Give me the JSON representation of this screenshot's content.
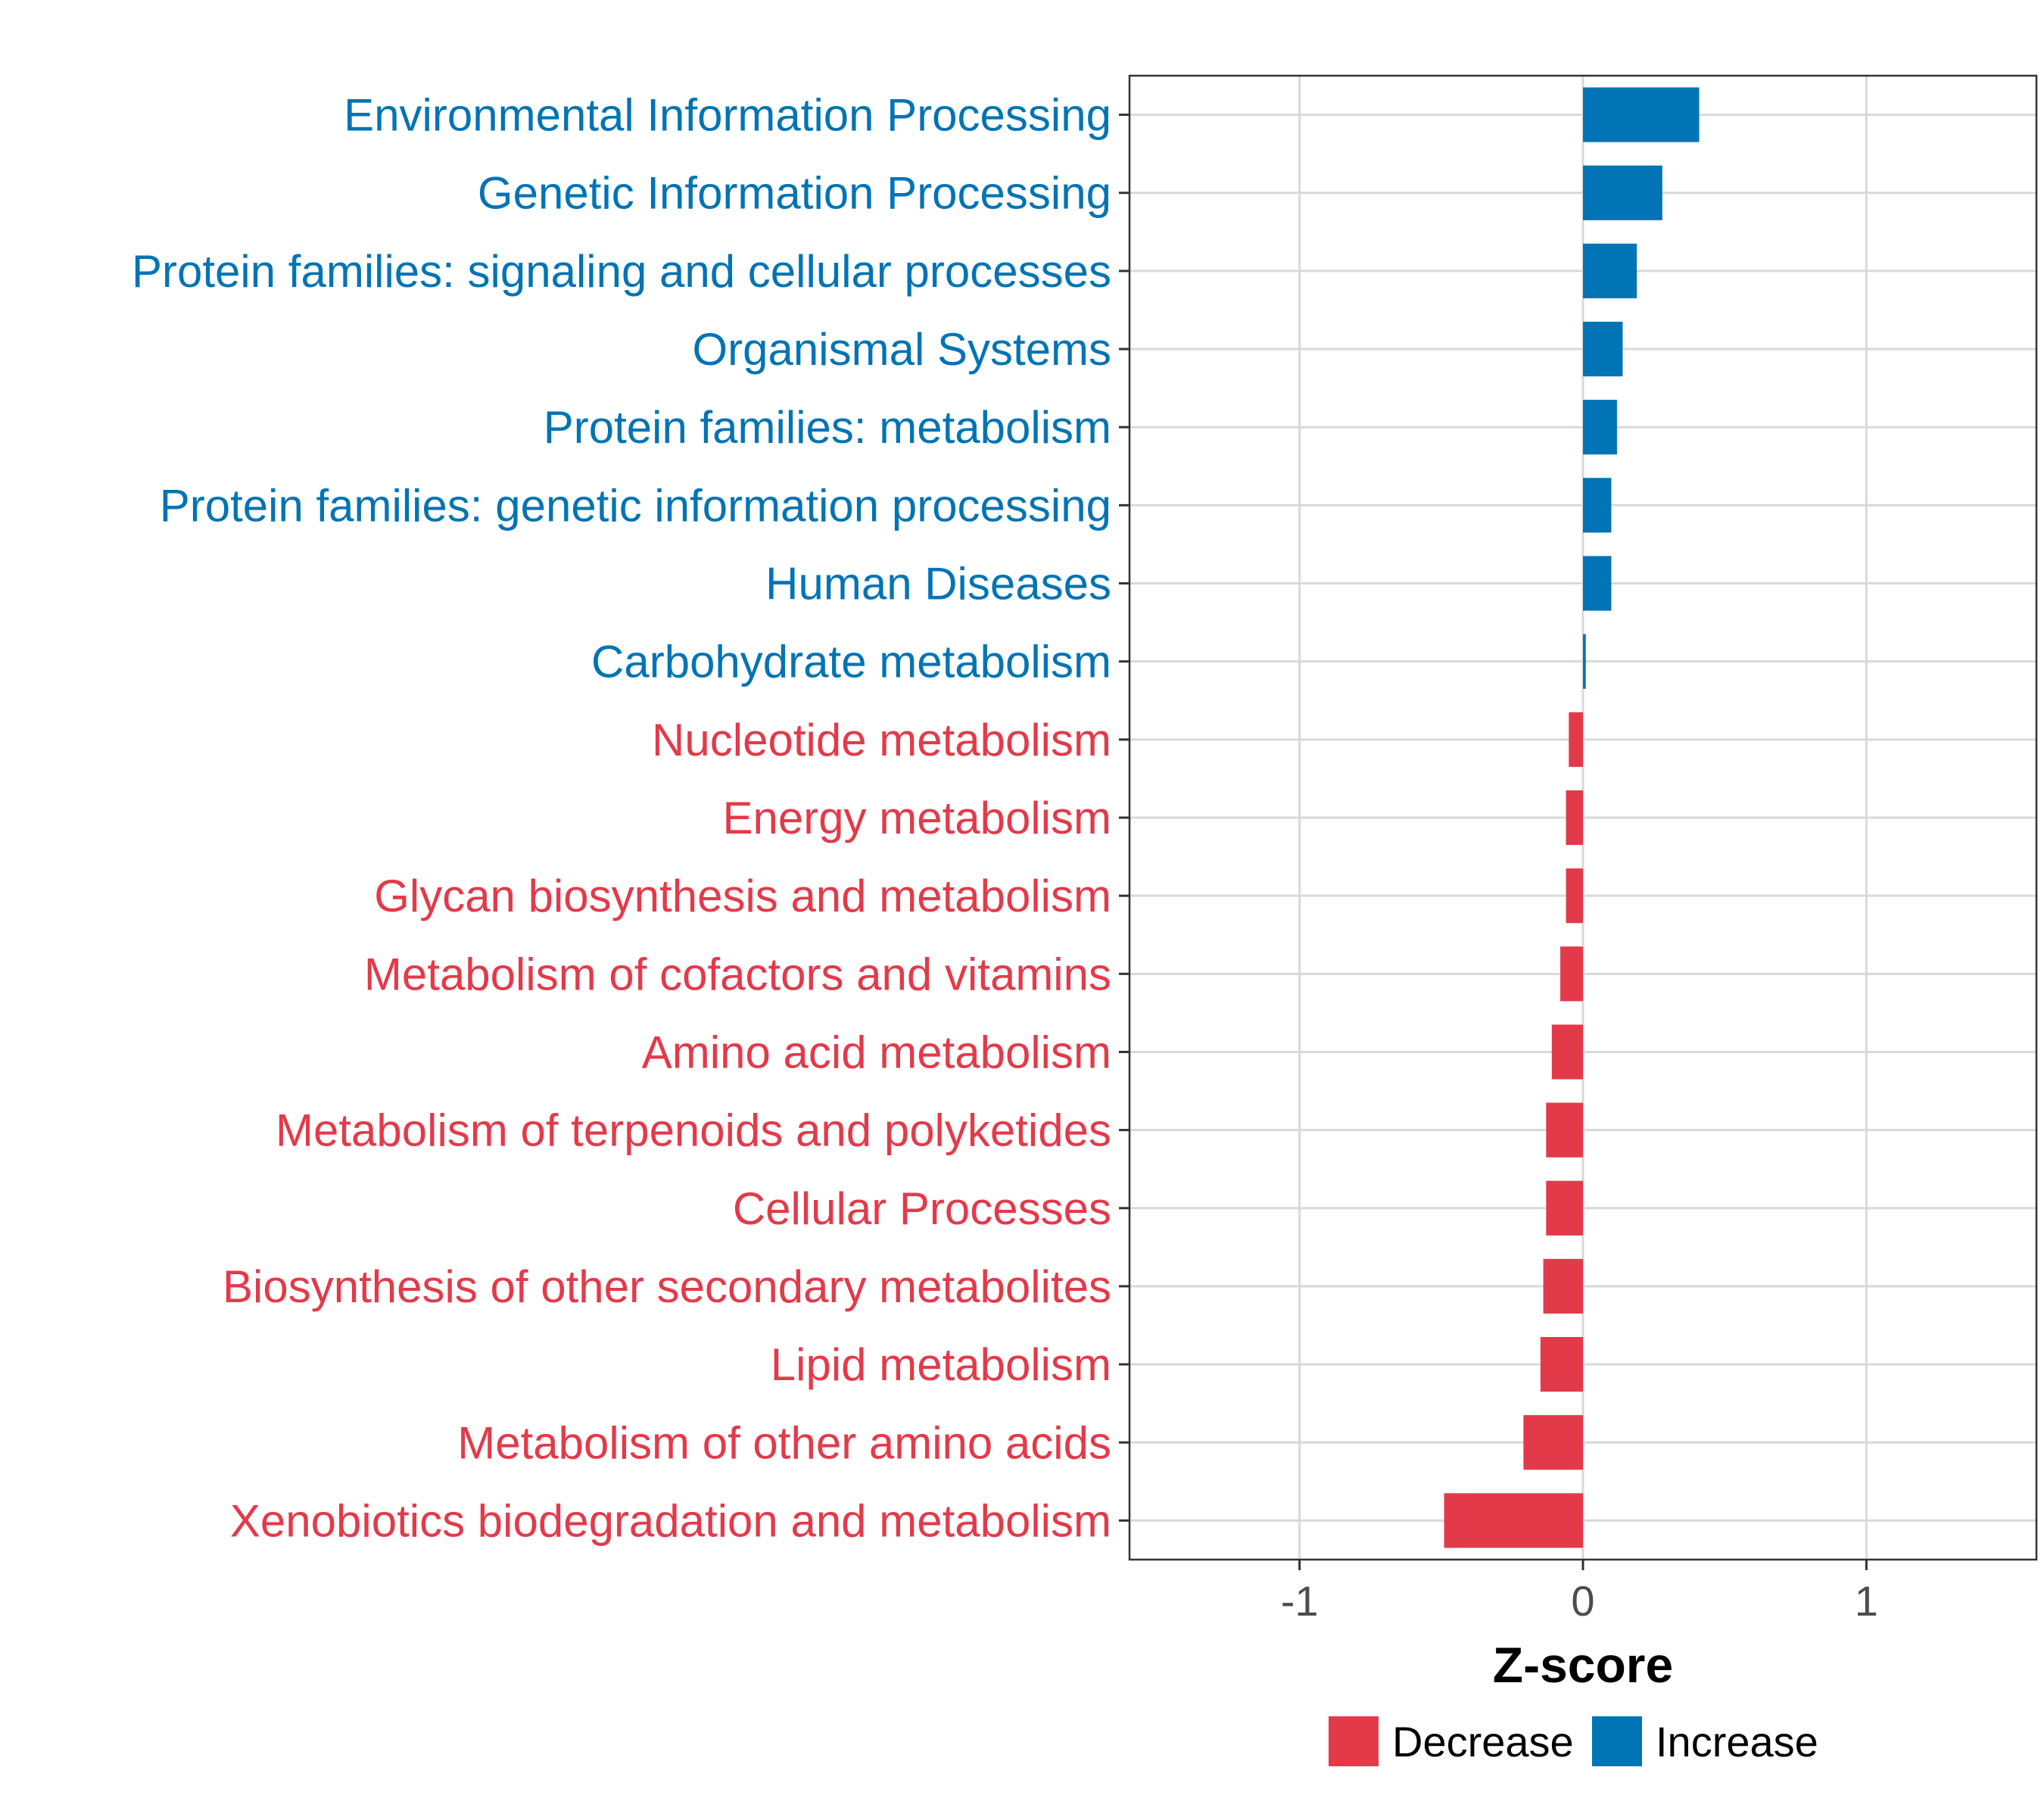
{
  "chart_data": {
    "type": "bar",
    "orientation": "horizontal",
    "title": "",
    "xlabel": "Z-score",
    "ylabel": "",
    "xlim": [
      -1.6,
      1.6
    ],
    "xticks": [
      -1,
      0,
      1
    ],
    "xtick_labels": [
      "-1",
      "0",
      "1"
    ],
    "grid": true,
    "legend_position": "bottom",
    "colors": {
      "Decrease": "#e33a4a",
      "Increase": "#0074b5"
    },
    "legend": [
      {
        "name": "Decrease",
        "color": "#e33a4a"
      },
      {
        "name": "Increase",
        "color": "#0074b5"
      }
    ],
    "categories": [
      "Environmental Information Processing",
      "Genetic Information Processing",
      "Protein families: signaling and cellular processes",
      "Organismal Systems",
      "Protein families: metabolism",
      "Protein families: genetic information processing",
      "Human Diseases",
      "Carbohydrate metabolism",
      "Nucleotide metabolism",
      "Energy metabolism",
      "Glycan biosynthesis and metabolism",
      "Metabolism of cofactors and vitamins",
      "Amino acid metabolism",
      "Metabolism of terpenoids and polyketides",
      "Cellular Processes",
      "Biosynthesis of other secondary metabolites",
      "Lipid metabolism",
      "Metabolism of other amino acids",
      "Xenobiotics biodegradation and metabolism"
    ],
    "values": [
      0.41,
      0.28,
      0.19,
      0.14,
      0.12,
      0.1,
      0.1,
      0.01,
      -0.05,
      -0.06,
      -0.06,
      -0.08,
      -0.11,
      -0.13,
      -0.13,
      -0.14,
      -0.15,
      -0.21,
      -0.49
    ],
    "groups": [
      "Increase",
      "Increase",
      "Increase",
      "Increase",
      "Increase",
      "Increase",
      "Increase",
      "Increase",
      "Decrease",
      "Decrease",
      "Decrease",
      "Decrease",
      "Decrease",
      "Decrease",
      "Decrease",
      "Decrease",
      "Decrease",
      "Decrease",
      "Decrease"
    ]
  }
}
